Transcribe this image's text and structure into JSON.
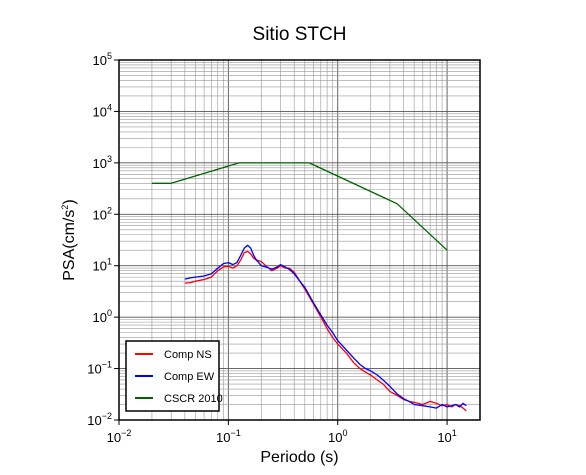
{
  "chart_data": {
    "type": "line",
    "title": "Sitio STCH",
    "xlabel": "Periodo (s)",
    "ylabel_base": "PSA(cm/s",
    "ylabel_sup": "2",
    "ylabel_close": ")",
    "xscale": "log",
    "yscale": "log",
    "xlim": [
      0.01,
      20
    ],
    "ylim": [
      0.01,
      100000
    ],
    "grid": true,
    "legend_position": "bottom-left",
    "x_ticks": [
      {
        "base": "10",
        "exp": "−2",
        "value": 0.01
      },
      {
        "base": "10",
        "exp": "−1",
        "value": 0.1
      },
      {
        "base": "10",
        "exp": "0",
        "value": 1
      },
      {
        "base": "10",
        "exp": "1",
        "value": 10
      }
    ],
    "y_ticks": [
      {
        "base": "10",
        "exp": "−2",
        "value": 0.01
      },
      {
        "base": "10",
        "exp": "−1",
        "value": 0.1
      },
      {
        "base": "10",
        "exp": "0",
        "value": 1
      },
      {
        "base": "10",
        "exp": "1",
        "value": 10
      },
      {
        "base": "10",
        "exp": "2",
        "value": 100
      },
      {
        "base": "10",
        "exp": "3",
        "value": 1000
      },
      {
        "base": "10",
        "exp": "4",
        "value": 10000
      },
      {
        "base": "10",
        "exp": "5",
        "value": 100000
      }
    ],
    "series": [
      {
        "name": "Comp NS",
        "color": "#ff0000",
        "x": [
          0.04,
          0.045,
          0.05,
          0.06,
          0.07,
          0.08,
          0.09,
          0.1,
          0.11,
          0.12,
          0.13,
          0.14,
          0.15,
          0.16,
          0.17,
          0.18,
          0.2,
          0.22,
          0.25,
          0.28,
          0.3,
          0.33,
          0.36,
          0.4,
          0.45,
          0.5,
          0.6,
          0.7,
          0.8,
          0.9,
          1.0,
          1.2,
          1.4,
          1.6,
          1.8,
          2.0,
          2.3,
          2.6,
          3.0,
          3.5,
          4.0,
          4.5,
          5.0,
          6.0,
          7.0,
          8.0,
          9.0,
          10.0,
          11.0,
          12.0,
          13.0,
          14.0,
          15.0
        ],
        "y": [
          4.6,
          4.7,
          5.0,
          5.4,
          6.0,
          8.0,
          9.5,
          9.8,
          9.0,
          10.0,
          13.0,
          18.0,
          19.0,
          17.0,
          14.0,
          13.0,
          12.0,
          10.0,
          8.0,
          9.0,
          10.0,
          9.0,
          9.0,
          7.5,
          5.0,
          3.5,
          1.8,
          1.0,
          0.6,
          0.4,
          0.3,
          0.2,
          0.13,
          0.1,
          0.085,
          0.075,
          0.06,
          0.05,
          0.036,
          0.03,
          0.025,
          0.023,
          0.022,
          0.02,
          0.023,
          0.021,
          0.019,
          0.02,
          0.018,
          0.02,
          0.019,
          0.017,
          0.015
        ]
      },
      {
        "name": "Comp EW",
        "color": "#0000ff",
        "x": [
          0.04,
          0.045,
          0.05,
          0.06,
          0.07,
          0.08,
          0.09,
          0.1,
          0.11,
          0.12,
          0.13,
          0.14,
          0.15,
          0.16,
          0.17,
          0.18,
          0.2,
          0.22,
          0.25,
          0.28,
          0.3,
          0.33,
          0.36,
          0.4,
          0.45,
          0.5,
          0.6,
          0.7,
          0.8,
          0.9,
          1.0,
          1.2,
          1.4,
          1.6,
          1.8,
          2.0,
          2.3,
          2.6,
          3.0,
          3.5,
          4.0,
          4.5,
          5.0,
          6.0,
          7.0,
          8.0,
          9.0,
          10.0,
          11.0,
          12.0,
          13.0,
          14.0,
          15.0
        ],
        "y": [
          5.5,
          5.8,
          6.0,
          6.3,
          7.0,
          9.0,
          11.0,
          11.5,
          10.5,
          11.5,
          16.0,
          22.0,
          25.0,
          22.0,
          16.0,
          13.0,
          10.0,
          9.5,
          8.5,
          9.5,
          10.5,
          9.5,
          8.5,
          7.0,
          5.0,
          3.8,
          1.9,
          1.1,
          0.7,
          0.5,
          0.35,
          0.23,
          0.16,
          0.12,
          0.1,
          0.09,
          0.075,
          0.06,
          0.045,
          0.032,
          0.026,
          0.023,
          0.02,
          0.019,
          0.018,
          0.017,
          0.02,
          0.018,
          0.019,
          0.02,
          0.018,
          0.021,
          0.019
        ]
      },
      {
        "name": "CSCR 2010",
        "color": "#006400",
        "x": [
          0.02,
          0.03,
          0.125,
          0.55,
          3.5,
          10.0
        ],
        "y": [
          400,
          400,
          1000,
          1000,
          160,
          20
        ]
      }
    ]
  }
}
